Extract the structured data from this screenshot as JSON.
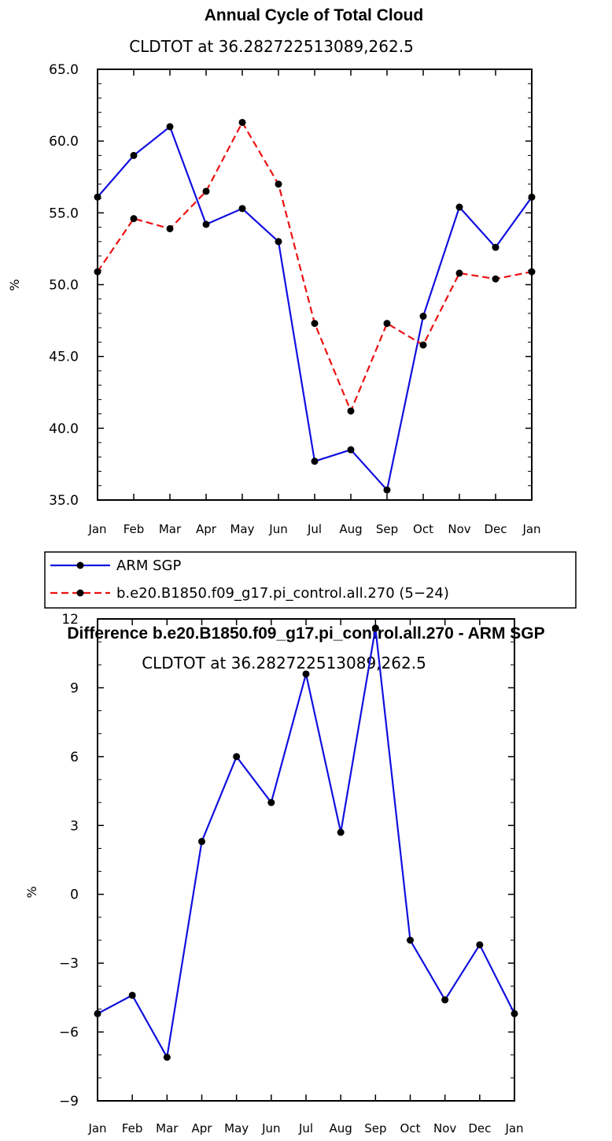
{
  "chart_data": [
    {
      "type": "line",
      "title": "Annual Cycle of Total Cloud",
      "subtitle": "CLDTOT at 36.282722513089,262.5",
      "ylabel": "%",
      "xlabel": "",
      "ylim": [
        35,
        65
      ],
      "yticks": [
        "65.0",
        "60.0",
        "55.0",
        "50.0",
        "45.0",
        "40.0",
        "35.0"
      ],
      "categories": [
        "Jan",
        "Feb",
        "Mar",
        "Apr",
        "May",
        "Jun",
        "Jul",
        "Aug",
        "Sep",
        "Oct",
        "Nov",
        "Dec",
        "Jan"
      ],
      "series": [
        {
          "name": "ARM SGP",
          "color": "#1010e0",
          "dash": "solid",
          "values": [
            56.1,
            59.0,
            61.0,
            54.2,
            55.3,
            53.0,
            37.7,
            38.5,
            35.7,
            47.8,
            55.4,
            52.6,
            56.1
          ]
        },
        {
          "name": "b.e20.B1850.f09_g17.pi_control.all.270 (5−24)",
          "color": "#ee1111",
          "dash": "dashed",
          "values": [
            50.9,
            54.6,
            53.9,
            56.5,
            61.3,
            57.0,
            47.3,
            41.2,
            47.3,
            45.8,
            50.8,
            50.4,
            50.9
          ]
        }
      ],
      "legend": "below"
    },
    {
      "type": "line",
      "title": "Difference b.e20.B1850.f09_g17.pi_control.all.270 - ARM SGP",
      "subtitle": "CLDTOT at 36.282722513089,262.5",
      "ylabel": "%",
      "xlabel": "",
      "ylim": [
        -9,
        12
      ],
      "yticks": [
        "12",
        "9",
        "6",
        "3",
        "0",
        "−3",
        "−6",
        "−9"
      ],
      "categories": [
        "Jan",
        "Feb",
        "Mar",
        "Apr",
        "May",
        "Jun",
        "Jul",
        "Aug",
        "Sep",
        "Oct",
        "Nov",
        "Dec",
        "Jan"
      ],
      "series": [
        {
          "name": "Difference",
          "color": "#1010e0",
          "dash": "solid",
          "values": [
            -5.2,
            -4.4,
            -7.1,
            2.3,
            6.0,
            4.0,
            9.6,
            2.7,
            11.6,
            -2.0,
            -4.6,
            -2.2,
            -5.2
          ]
        }
      ]
    }
  ]
}
